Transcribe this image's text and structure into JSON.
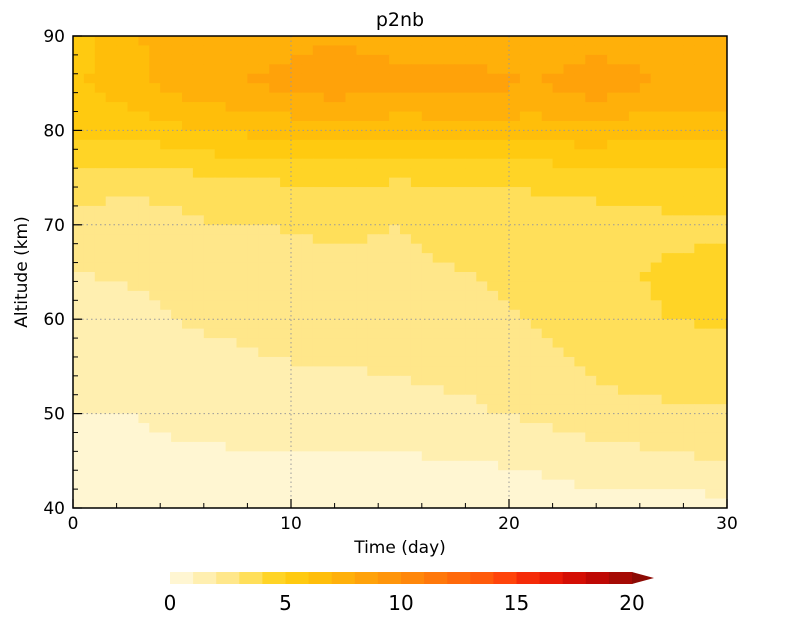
{
  "chart_data": {
    "type": "heatmap",
    "title": "p2nb",
    "xlabel": "Time (day)",
    "ylabel": "Altitude (km)",
    "xlim": [
      0,
      30
    ],
    "ylim": [
      40,
      90
    ],
    "x_ticks": [
      "0",
      "10",
      "20",
      "30"
    ],
    "y_ticks": [
      "40",
      "50",
      "60",
      "70",
      "80",
      "90"
    ],
    "grid": true,
    "colorbar": {
      "orientation": "horizontal",
      "placement": "bottom",
      "tick_labels": [
        "0",
        "5",
        "10",
        "15",
        "20"
      ],
      "range": [
        0,
        20
      ],
      "levels": [
        0,
        1,
        2,
        3,
        4,
        5,
        6,
        7,
        8,
        9,
        10,
        11,
        12,
        13,
        14,
        15,
        16,
        17,
        18,
        19,
        20
      ],
      "extend": "max",
      "colors": [
        "#FFF6D2",
        "#FFEFB0",
        "#FFE78A",
        "#FFDF5A",
        "#FFD426",
        "#FFCA10",
        "#FFBE0A",
        "#FFB00A",
        "#FFA20A",
        "#FF950A",
        "#FF870A",
        "#FF780A",
        "#FF690A",
        "#FF5A0A",
        "#FF440A",
        "#F52B08",
        "#E81A06",
        "#D40E04",
        "#BE0804",
        "#A50A04",
        "#8C0A04"
      ]
    },
    "profile_altitude_km": [
      40,
      45,
      50,
      55,
      60,
      65,
      70,
      75,
      80,
      85,
      90
    ],
    "time_days": [
      0,
      3,
      6,
      9,
      12,
      15,
      18,
      21,
      24,
      27,
      30
    ],
    "values": [
      [
        0.8,
        0.8,
        0.8,
        0.7,
        0.7,
        0.7,
        0.6,
        0.6,
        0.6,
        0.6,
        0.6
      ],
      [
        0.9,
        0.9,
        0.9,
        0.9,
        0.9,
        0.9,
        1.0,
        1.1,
        1.5,
        1.8,
        2.0
      ],
      [
        1.0,
        1.0,
        1.2,
        1.3,
        1.4,
        1.6,
        1.8,
        2.2,
        2.6,
        2.8,
        2.9
      ],
      [
        1.1,
        1.2,
        1.5,
        1.9,
        2.0,
        2.1,
        2.3,
        2.6,
        3.2,
        3.5,
        3.6
      ],
      [
        1.4,
        1.7,
        2.2,
        2.5,
        2.6,
        2.7,
        2.8,
        3.0,
        3.6,
        4.0,
        4.1
      ],
      [
        2.0,
        2.2,
        2.6,
        2.8,
        2.9,
        2.9,
        3.0,
        3.2,
        3.8,
        4.1,
        4.2
      ],
      [
        2.6,
        2.4,
        2.9,
        3.0,
        3.1,
        3.0,
        3.2,
        3.3,
        3.6,
        3.8,
        3.9
      ],
      [
        3.6,
        3.4,
        3.9,
        4.1,
        4.2,
        4.1,
        4.2,
        4.3,
        4.4,
        4.5,
        4.6
      ],
      [
        5.2,
        5.5,
        6.0,
        6.3,
        6.5,
        6.4,
        6.6,
        6.5,
        6.8,
        6.2,
        6.3
      ],
      [
        5.8,
        6.8,
        7.8,
        8.2,
        8.8,
        8.2,
        8.5,
        8.0,
        8.6,
        8.0,
        7.8
      ],
      [
        5.5,
        7.0,
        7.2,
        7.5,
        7.8,
        7.6,
        7.4,
        7.2,
        7.6,
        7.4,
        7.0
      ]
    ]
  }
}
